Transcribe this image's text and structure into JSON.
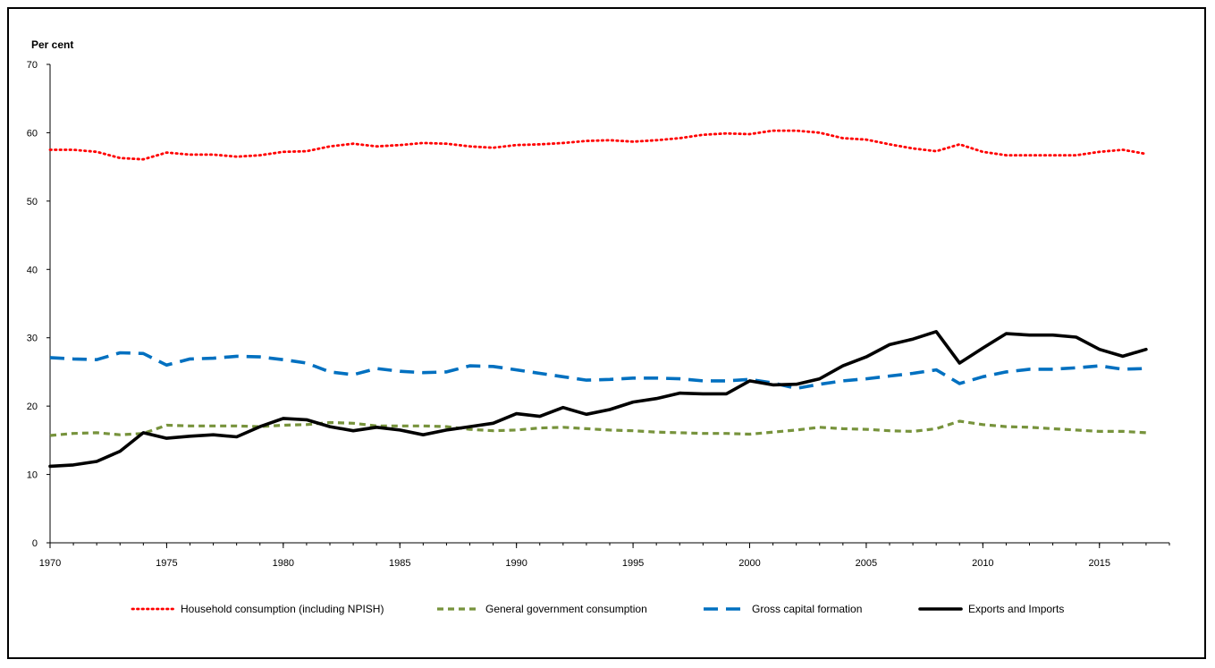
{
  "chart_data": {
    "type": "line",
    "ylabel": "Per cent",
    "ylim": [
      0,
      70
    ],
    "yticks": [
      0,
      10,
      20,
      30,
      40,
      50,
      60,
      70
    ],
    "xlim": [
      1970,
      2018
    ],
    "xticks": [
      1970,
      1975,
      1980,
      1985,
      1990,
      1995,
      2000,
      2005,
      2010,
      2015
    ],
    "grid": false,
    "legend_position": "bottom",
    "x": [
      1970,
      1971,
      1972,
      1973,
      1974,
      1975,
      1976,
      1977,
      1978,
      1979,
      1980,
      1981,
      1982,
      1983,
      1984,
      1985,
      1986,
      1987,
      1988,
      1989,
      1990,
      1991,
      1992,
      1993,
      1994,
      1995,
      1996,
      1997,
      1998,
      1999,
      2000,
      2001,
      2002,
      2003,
      2004,
      2005,
      2006,
      2007,
      2008,
      2009,
      2010,
      2011,
      2012,
      2013,
      2014,
      2015,
      2016,
      2017
    ],
    "series": [
      {
        "name": "Household consumption (including NPISH)",
        "color": "#ff0000",
        "style": "dotted",
        "values": [
          57.5,
          57.5,
          57.2,
          56.3,
          56.1,
          57.1,
          56.8,
          56.8,
          56.5,
          56.7,
          57.2,
          57.3,
          58.0,
          58.4,
          58.0,
          58.2,
          58.5,
          58.4,
          58.0,
          57.8,
          58.2,
          58.3,
          58.5,
          58.8,
          58.9,
          58.7,
          58.9,
          59.2,
          59.7,
          59.9,
          59.8,
          60.3,
          60.3,
          60.0,
          59.2,
          59.0,
          58.3,
          57.7,
          57.3,
          58.3,
          57.2,
          56.7,
          56.7,
          56.7,
          56.7,
          57.2,
          57.5,
          56.9
        ]
      },
      {
        "name": "General government consumption",
        "color": "#77933c",
        "style": "dashed",
        "values": [
          15.7,
          16.0,
          16.1,
          15.8,
          16.0,
          17.2,
          17.1,
          17.1,
          17.1,
          17.0,
          17.2,
          17.3,
          17.6,
          17.5,
          17.1,
          17.1,
          17.1,
          17.0,
          16.6,
          16.4,
          16.5,
          16.8,
          16.9,
          16.7,
          16.5,
          16.4,
          16.2,
          16.1,
          16.0,
          16.0,
          15.9,
          16.2,
          16.5,
          16.9,
          16.7,
          16.6,
          16.4,
          16.3,
          16.7,
          17.8,
          17.3,
          17.0,
          16.9,
          16.7,
          16.5,
          16.3,
          16.3,
          16.1
        ]
      },
      {
        "name": "Gross capital formation",
        "color": "#0070c0",
        "style": "dashed-long",
        "values": [
          27.1,
          26.9,
          26.8,
          27.8,
          27.7,
          26.0,
          26.9,
          27.0,
          27.3,
          27.2,
          26.8,
          26.3,
          25.0,
          24.6,
          25.5,
          25.1,
          24.9,
          25.0,
          25.9,
          25.8,
          25.3,
          24.8,
          24.3,
          23.8,
          23.9,
          24.1,
          24.1,
          24.0,
          23.7,
          23.7,
          23.9,
          23.4,
          22.6,
          23.2,
          23.7,
          24.0,
          24.4,
          24.8,
          25.3,
          23.3,
          24.3,
          25.0,
          25.4,
          25.4,
          25.6,
          25.9,
          25.4,
          25.5
        ]
      },
      {
        "name": "Exports and Imports",
        "color": "#000000",
        "style": "solid",
        "values": [
          11.2,
          11.4,
          11.9,
          13.4,
          16.1,
          15.3,
          15.6,
          15.8,
          15.5,
          17.0,
          18.2,
          18.0,
          17.0,
          16.4,
          16.9,
          16.5,
          15.8,
          16.5,
          17.0,
          17.5,
          18.9,
          18.5,
          19.8,
          18.8,
          19.5,
          20.6,
          21.1,
          21.9,
          21.8,
          21.8,
          23.7,
          23.1,
          23.2,
          24.0,
          25.9,
          27.2,
          29.0,
          29.8,
          30.9,
          26.3,
          28.5,
          30.6,
          30.4,
          30.4,
          30.1,
          28.3,
          27.3,
          28.3
        ]
      }
    ]
  }
}
